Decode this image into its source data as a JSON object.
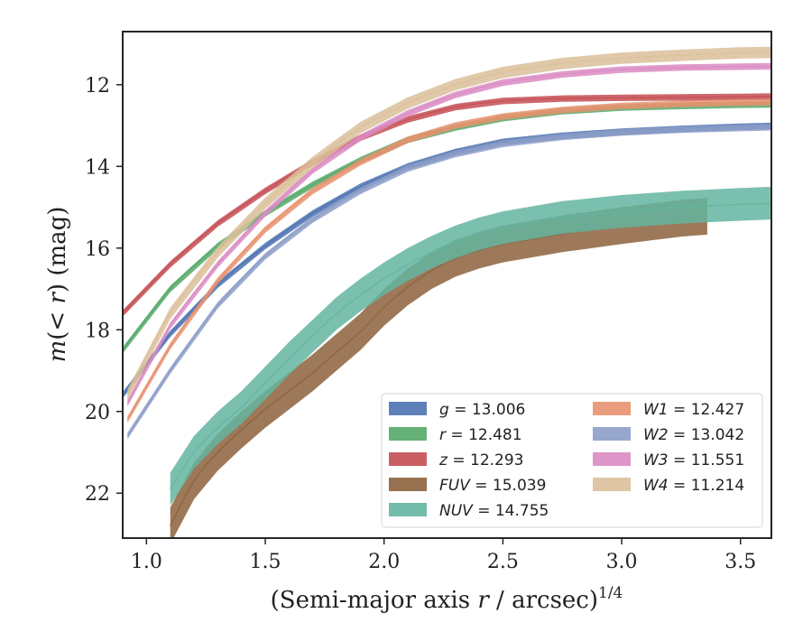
{
  "chart_data": {
    "type": "line",
    "xlabel": "(Semi-major axis r / arcsec)",
    "xlabel_parts": {
      "pre": "(Semi-major axis ",
      "var": "r",
      "post": " / arcsec)",
      "sup": "1/4"
    },
    "ylabel": "m(< r) (mag)",
    "ylabel_parts": {
      "pre": "m",
      "mid": "(< ",
      "var": "r",
      "post": ") (mag)"
    },
    "xlim": [
      0.9,
      3.63
    ],
    "ylim": [
      23.1,
      10.7
    ],
    "y_inverted": true,
    "xticks": [
      1.0,
      1.5,
      2.0,
      2.5,
      3.0,
      3.5
    ],
    "xtick_labels": [
      "1.0",
      "1.5",
      "2.0",
      "2.5",
      "3.0",
      "3.5"
    ],
    "yticks": [
      12,
      14,
      16,
      18,
      20,
      22
    ],
    "ytick_labels": [
      "12",
      "14",
      "16",
      "18",
      "20",
      "22"
    ],
    "grid": false,
    "legend_position": "lower-right",
    "series": [
      {
        "name": "g",
        "value": "13.006",
        "color": "#4c72b0",
        "band": 0.08,
        "x": [
          0.9,
          1.1,
          1.3,
          1.5,
          1.7,
          1.9,
          2.1,
          2.3,
          2.5,
          2.75,
          3.0,
          3.25,
          3.5,
          3.63
        ],
        "y": [
          19.6,
          18.1,
          16.9,
          15.95,
          15.15,
          14.5,
          14.0,
          13.65,
          13.4,
          13.25,
          13.15,
          13.08,
          13.03,
          13.01
        ]
      },
      {
        "name": "r",
        "value": "12.481",
        "color": "#55a868",
        "band": 0.08,
        "x": [
          0.9,
          1.1,
          1.3,
          1.5,
          1.7,
          1.9,
          2.1,
          2.3,
          2.5,
          2.75,
          3.0,
          3.25,
          3.5,
          3.63
        ],
        "y": [
          18.5,
          17.0,
          15.95,
          15.15,
          14.45,
          13.85,
          13.35,
          13.05,
          12.82,
          12.65,
          12.56,
          12.52,
          12.49,
          12.48
        ]
      },
      {
        "name": "z",
        "value": "12.293",
        "color": "#c44e52",
        "band": 0.08,
        "x": [
          0.9,
          1.1,
          1.3,
          1.5,
          1.7,
          1.9,
          2.1,
          2.3,
          2.5,
          2.75,
          3.0,
          3.25,
          3.5,
          3.63
        ],
        "y": [
          17.6,
          16.4,
          15.4,
          14.6,
          13.9,
          13.3,
          12.85,
          12.55,
          12.4,
          12.34,
          12.32,
          12.31,
          12.3,
          12.29
        ]
      },
      {
        "name": "FUV",
        "value": "15.039",
        "color": "#8c613c",
        "band": 0.45,
        "x": [
          1.1,
          1.2,
          1.3,
          1.4,
          1.5,
          1.6,
          1.7,
          1.8,
          1.9,
          2.0,
          2.1,
          2.2,
          2.3,
          2.4,
          2.5,
          2.6,
          2.75,
          3.0,
          3.25,
          3.36
        ],
        "y": [
          22.8,
          21.7,
          21.0,
          20.45,
          19.95,
          19.5,
          19.05,
          18.55,
          18.05,
          17.45,
          16.95,
          16.55,
          16.25,
          16.05,
          15.9,
          15.8,
          15.65,
          15.45,
          15.27,
          15.22
        ]
      },
      {
        "name": "NUV",
        "value": "14.755",
        "color": "#64b5a0",
        "band": 0.4,
        "x": [
          1.1,
          1.2,
          1.3,
          1.4,
          1.5,
          1.6,
          1.7,
          1.8,
          1.9,
          2.0,
          2.1,
          2.2,
          2.3,
          2.4,
          2.5,
          2.75,
          3.0,
          3.25,
          3.5,
          3.63
        ],
        "y": [
          21.9,
          21.0,
          20.4,
          19.9,
          19.3,
          18.7,
          18.15,
          17.6,
          17.15,
          16.75,
          16.4,
          16.1,
          15.85,
          15.65,
          15.5,
          15.25,
          15.1,
          15.0,
          14.93,
          14.9
        ]
      },
      {
        "name": "W1",
        "value": "12.427",
        "color": "#e8926e",
        "band": 0.08,
        "x": [
          0.92,
          1.1,
          1.3,
          1.5,
          1.7,
          1.9,
          2.1,
          2.3,
          2.5,
          2.75,
          3.0,
          3.25,
          3.5,
          3.63
        ],
        "y": [
          20.2,
          18.4,
          16.8,
          15.55,
          14.6,
          13.9,
          13.35,
          13.0,
          12.78,
          12.62,
          12.52,
          12.47,
          12.44,
          12.43
        ]
      },
      {
        "name": "W2",
        "value": "13.042",
        "color": "#8c9dc8",
        "band": 0.08,
        "x": [
          0.92,
          1.1,
          1.3,
          1.5,
          1.7,
          1.9,
          2.1,
          2.3,
          2.5,
          2.75,
          3.0,
          3.25,
          3.5,
          3.63
        ],
        "y": [
          20.6,
          19.0,
          17.4,
          16.2,
          15.3,
          14.6,
          14.05,
          13.7,
          13.45,
          13.28,
          13.17,
          13.1,
          13.06,
          13.04
        ]
      },
      {
        "name": "W3",
        "value": "11.551",
        "color": "#da8bc3",
        "band": 0.08,
        "x": [
          0.92,
          1.1,
          1.3,
          1.5,
          1.7,
          1.9,
          2.1,
          2.3,
          2.5,
          2.75,
          3.0,
          3.25,
          3.5,
          3.63
        ],
        "y": [
          19.8,
          17.9,
          16.4,
          15.15,
          14.1,
          13.3,
          12.7,
          12.25,
          11.95,
          11.75,
          11.63,
          11.58,
          11.56,
          11.55
        ]
      },
      {
        "name": "W4",
        "value": "11.214",
        "color": "#dbbf9a",
        "band": 0.14,
        "x": [
          0.92,
          1.1,
          1.3,
          1.5,
          1.7,
          1.9,
          2.1,
          2.3,
          2.5,
          2.75,
          3.0,
          3.25,
          3.5,
          3.63
        ],
        "y": [
          19.6,
          17.6,
          16.1,
          14.9,
          13.9,
          13.05,
          12.45,
          12.0,
          11.7,
          11.48,
          11.35,
          11.28,
          11.22,
          11.21
        ]
      }
    ]
  }
}
